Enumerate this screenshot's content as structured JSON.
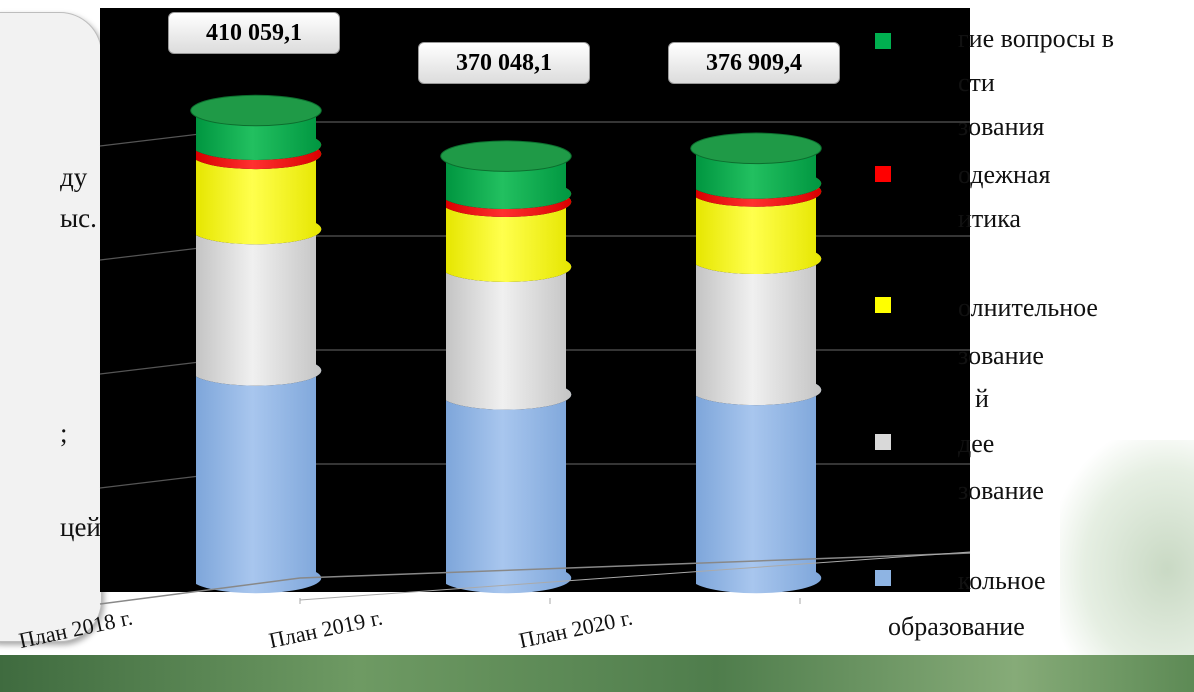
{
  "side_card": {
    "fragments": [
      "ду",
      "ыс.",
      ";",
      "цей"
    ]
  },
  "legend": {
    "lines": [
      "гие вопросы в",
      "сти",
      "зования",
      "одежная",
      "итика",
      "олнительное",
      "зование",
      "й",
      "дее",
      "зование",
      "кольное",
      "образование"
    ]
  },
  "chart_data": {
    "type": "bar",
    "categories": [
      "План 2018 г.",
      "План 2019 г.",
      "План 2020 г."
    ],
    "totals": [
      "410 059,1",
      "370 048,1",
      "376 909,4"
    ],
    "series": [
      {
        "name": "Дошкольное образование",
        "color": "#8eb4e3",
        "values": [
          182000,
          161000,
          165000
        ]
      },
      {
        "name": "Общее образование",
        "color": "#d9d9d9",
        "values": [
          124000,
          112000,
          115000
        ]
      },
      {
        "name": "Дополнительное образование детей",
        "color": "#ffff00",
        "values": [
          66000,
          57000,
          59000
        ]
      },
      {
        "name": "Молодежная политика",
        "color": "#ff0000",
        "values": [
          8000,
          7000,
          7000
        ]
      },
      {
        "name": "Другие вопросы в области образования",
        "color": "#00b050",
        "values": [
          30059,
          33048,
          30909
        ]
      }
    ],
    "ylim": [
      0,
      500000
    ],
    "grid": true,
    "legend_position": "right"
  }
}
